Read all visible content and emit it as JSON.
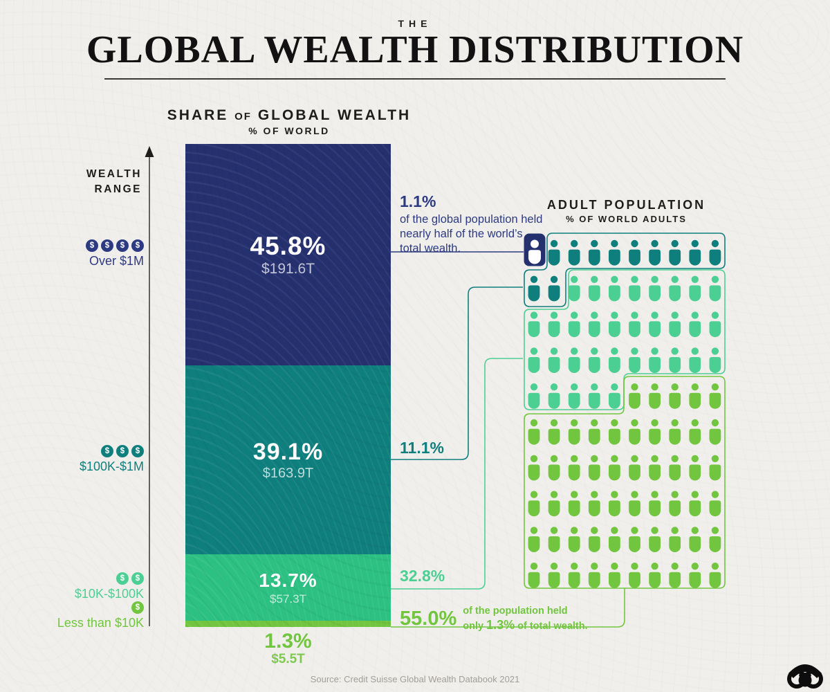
{
  "page": {
    "title_kicker": "THE",
    "title": "GLOBAL WEALTH DISTRIBUTION",
    "source": "Source: Credit Suisse Global Wealth Databook 2021",
    "logo": "visual-capitalist-logo"
  },
  "colors": {
    "navy": "#25306f",
    "navy_text": "#2c3a82",
    "teal": "#0f7f7e",
    "spring": "#2cc183",
    "spring_icon": "#4ccf93",
    "apple": "#72c53f",
    "ink": "#1d1d1b",
    "bg": "#f1efeb",
    "muted": "#a19e98",
    "line": "#3f3f3d"
  },
  "wealth_chart": {
    "heading_pre": "SHARE",
    "heading_of": "OF",
    "heading_post": "GLOBAL WEALTH",
    "subheading": "% OF WORLD",
    "axis_label_line1": "WEALTH",
    "axis_label_line2": "RANGE",
    "ranges": [
      {
        "label": "Over $1M",
        "dollar_icons": 4,
        "color": "navy"
      },
      {
        "label": "$100K-$1M",
        "dollar_icons": 3,
        "color": "teal"
      },
      {
        "label": "$10K-$100K",
        "dollar_icons": 2,
        "color": "spring"
      },
      {
        "label": "Less than $10K",
        "dollar_icons": 1,
        "color": "apple"
      }
    ]
  },
  "population_chart": {
    "heading": "ADULT POPULATION",
    "subheading": "% OF WORLD ADULTS"
  },
  "annotations": {
    "top_pct": "1.1%",
    "top_text": "of the global population held nearly half of the world’s total wealth.",
    "teal_pct": "11.1%",
    "spring_pct": "32.8%",
    "bottom_pct": "55.0%",
    "bottom_line1": "of the population held",
    "bottom_line2_pre": "only ",
    "bottom_line2_big": "1.3%",
    "bottom_line2_post": " of total wealth."
  },
  "chart_data": [
    {
      "type": "bar",
      "stacked": true,
      "title": "Share of Global Wealth",
      "unit": "% of world wealth",
      "categories": [
        "Over $1M",
        "$100K-$1M",
        "$10K-$100K",
        "Less than $10K"
      ],
      "series": [
        {
          "name": "share_of_wealth_pct",
          "values": [
            45.8,
            39.1,
            13.7,
            1.3
          ]
        },
        {
          "name": "wealth_total",
          "values": [
            "$191.6T",
            "$163.9T",
            "$57.3T",
            "$5.5T"
          ]
        }
      ],
      "segment_colors": [
        "navy",
        "teal",
        "spring",
        "apple"
      ],
      "ylim": [
        0,
        100
      ],
      "grid": false
    },
    {
      "type": "pictogram",
      "title": "Adult Population",
      "unit": "% of world adults",
      "icons_total": 100,
      "categories": [
        "Over $1M",
        "$100K-$1M",
        "$10K-$100K",
        "Less than $10K"
      ],
      "values": [
        1.1,
        11.1,
        32.8,
        55.0
      ],
      "icon_colors": [
        "navy",
        "teal",
        "spring_icon",
        "apple"
      ],
      "legend_position": "none"
    }
  ]
}
